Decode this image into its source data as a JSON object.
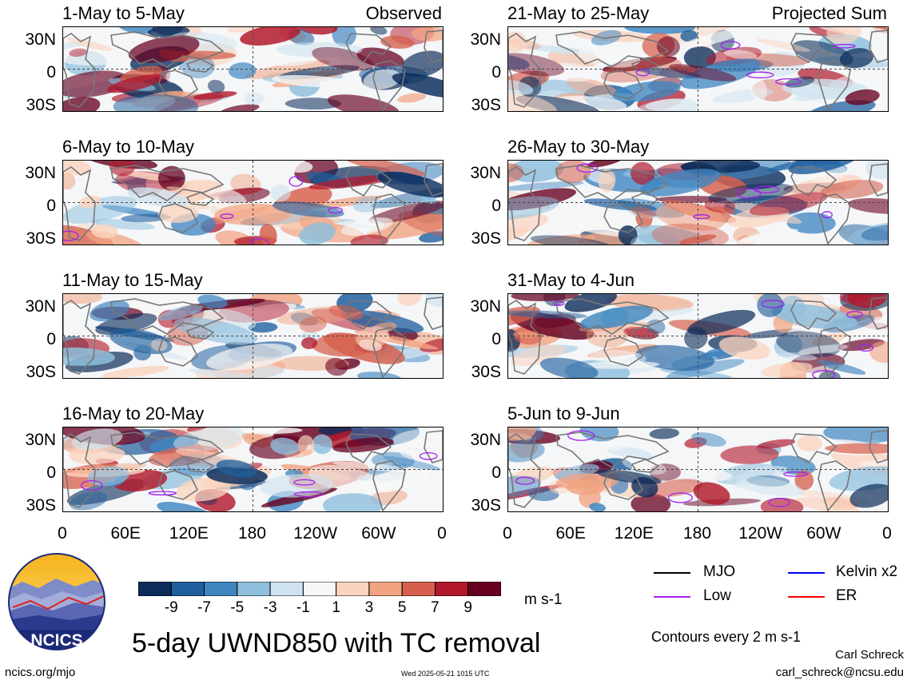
{
  "figure": {
    "title": "5-day UWND850 with TC removal",
    "units": "m s-1",
    "source_url": "ncics.org/mjo",
    "timestamp": "Wed 2025-05-21 1015 UTC",
    "author": "Carl Schreck",
    "email": "carl_schreck@ncsu.edu",
    "contour_note": "Contours every 2 m s-1",
    "logo_text": "NCICS"
  },
  "labels": {
    "observed": "Observed",
    "projected": "Projected Sum"
  },
  "chart_data": {
    "type": "heatmap",
    "variable": "850-hPa zonal wind anomaly",
    "colorbar": {
      "ticks": [
        "-9",
        "-7",
        "-5",
        "-3",
        "-1",
        "1",
        "3",
        "5",
        "7",
        "9"
      ],
      "colors": [
        "#0c2c5a",
        "#1f5f9e",
        "#3f86c0",
        "#8ebfdd",
        "#cfe3ef",
        "#f7f7f7",
        "#fbd4bf",
        "#f2a482",
        "#d6604d",
        "#b2182b",
        "#67001f"
      ]
    },
    "yticks": [
      "30N",
      "0",
      "30S"
    ],
    "xticks": [
      "0",
      "60E",
      "120E",
      "180",
      "120W",
      "60W",
      "0"
    ],
    "legend": [
      {
        "name": "MJO",
        "color": "#000000"
      },
      {
        "name": "Kelvin x2",
        "color": "#0000ff"
      },
      {
        "name": "Low",
        "color": "#a020f0"
      },
      {
        "name": "ER",
        "color": "#ff0000"
      }
    ],
    "panels": [
      {
        "title": "1-May to 5-May",
        "group": "observed"
      },
      {
        "title": "6-May to 10-May",
        "group": "observed"
      },
      {
        "title": "11-May to 15-May",
        "group": "observed"
      },
      {
        "title": "16-May to 20-May",
        "group": "observed"
      },
      {
        "title": "21-May to 25-May",
        "group": "projected"
      },
      {
        "title": "26-May to 30-May",
        "group": "projected"
      },
      {
        "title": "31-May to 4-Jun",
        "group": "projected"
      },
      {
        "title": "5-Jun to 9-Jun",
        "group": "projected"
      }
    ]
  }
}
